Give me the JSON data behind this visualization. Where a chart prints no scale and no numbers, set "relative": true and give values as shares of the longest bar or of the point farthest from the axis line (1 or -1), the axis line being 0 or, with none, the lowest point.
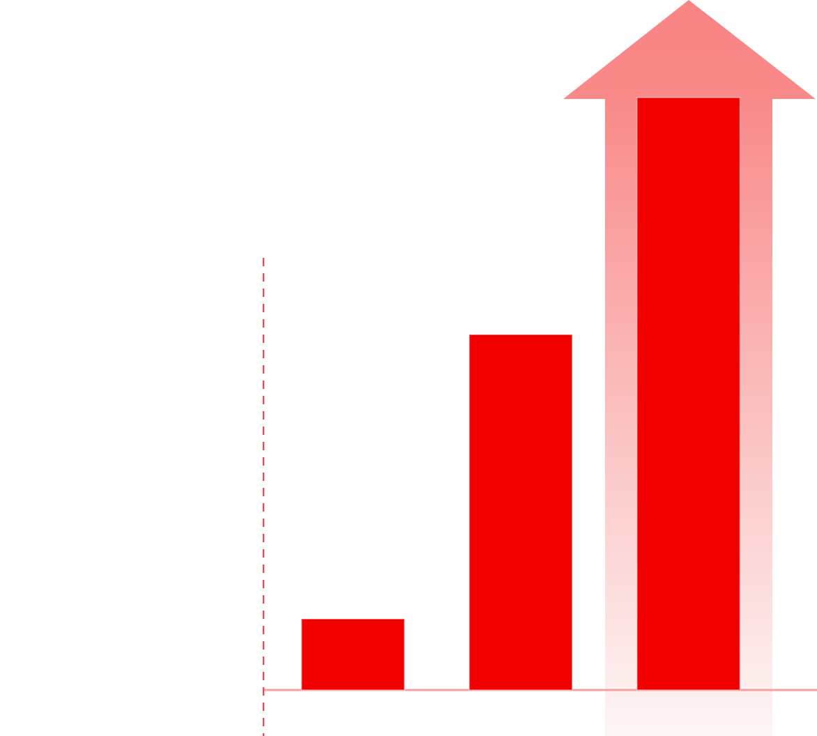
{
  "chart_data": {
    "type": "bar",
    "categories": [
      null,
      null,
      null
    ],
    "values": [
      0.12,
      0.6,
      1
    ],
    "color": "#f20000",
    "relative": true
  }
}
